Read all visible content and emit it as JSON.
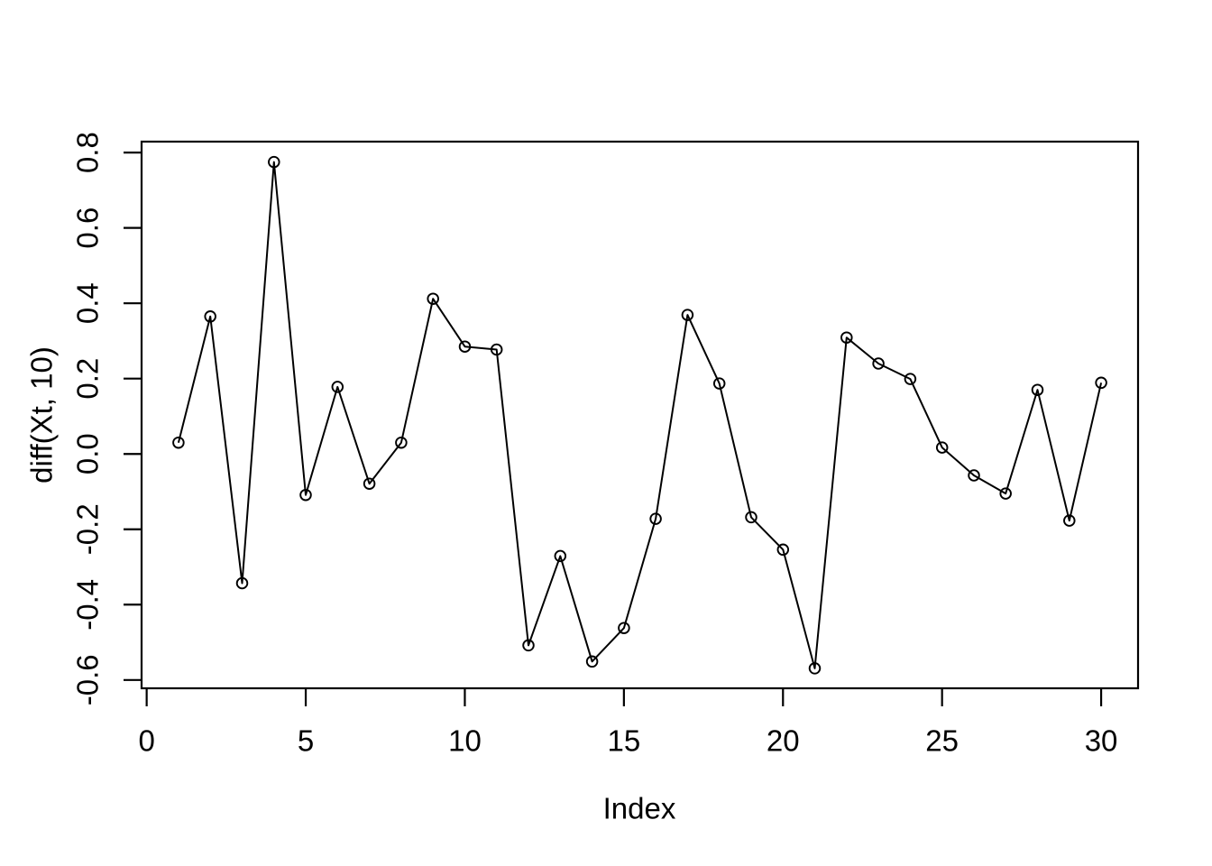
{
  "chart_data": {
    "type": "line",
    "title": "",
    "xlabel": "Index",
    "ylabel": "diff(Xt, 10)",
    "marker": "open-circle",
    "line_color": "#000000",
    "marker_color": "#000000",
    "background_color": "#ffffff",
    "grid": false,
    "legend": null,
    "xlim": [
      -0.16,
      31.16
    ],
    "ylim": [
      -0.622,
      0.829
    ],
    "x_ticks": [
      0,
      5,
      10,
      15,
      20,
      25,
      30
    ],
    "x_tick_labels": [
      "0",
      "5",
      "10",
      "15",
      "20",
      "25",
      "30"
    ],
    "y_ticks": [
      -0.6,
      -0.4,
      -0.2,
      0.0,
      0.2,
      0.4,
      0.6,
      0.8
    ],
    "y_tick_labels": [
      "-0.6",
      "-0.4",
      "-0.2",
      "0.0",
      "0.2",
      "0.4",
      "0.6",
      "0.8"
    ],
    "x": [
      1,
      2,
      3,
      4,
      5,
      6,
      7,
      8,
      9,
      10,
      11,
      12,
      13,
      14,
      15,
      16,
      17,
      18,
      19,
      20,
      21,
      22,
      23,
      24,
      25,
      26,
      27,
      28,
      29,
      30
    ],
    "values": [
      0.03,
      0.365,
      -0.343,
      0.775,
      -0.109,
      0.178,
      -0.079,
      0.03,
      0.412,
      0.285,
      0.277,
      -0.508,
      -0.271,
      -0.551,
      -0.462,
      -0.172,
      0.369,
      0.187,
      -0.168,
      -0.254,
      -0.569,
      0.309,
      0.24,
      0.199,
      0.017,
      -0.057,
      -0.105,
      0.17,
      -0.177,
      0.189
    ]
  }
}
